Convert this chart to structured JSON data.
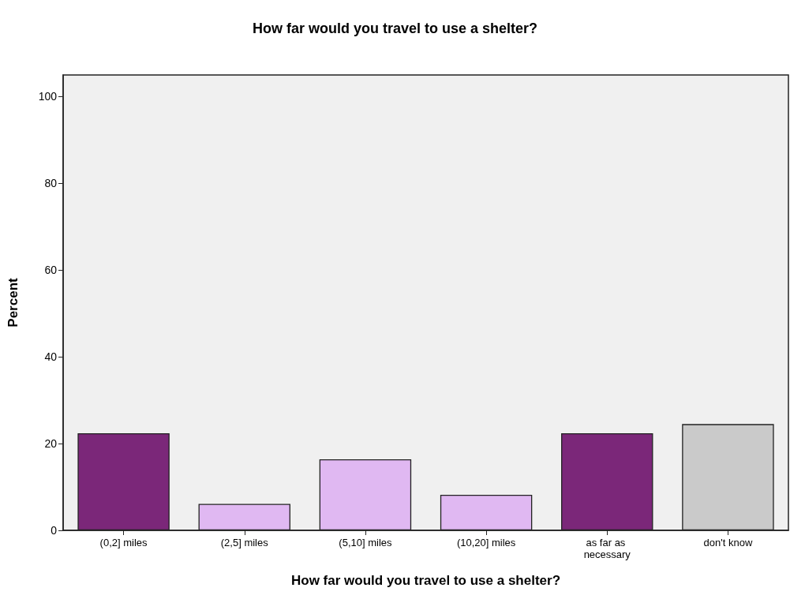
{
  "chart_data": {
    "type": "bar",
    "title": "How far would you travel to use a shelter?",
    "xlabel": "How far would you travel to use a shelter?",
    "ylabel": "Percent",
    "categories": [
      "(0,2] miles",
      "(2,5] miles",
      "(5,10] miles",
      "(10,20] miles",
      "as far as necessary",
      "don't know"
    ],
    "values": [
      22.4,
      6.1,
      16.4,
      8.2,
      22.4,
      24.5
    ],
    "colors": [
      "#7b2779",
      "#e0b8f2",
      "#e0b8f2",
      "#e0b8f2",
      "#7b2779",
      "#cacaca"
    ],
    "ylim": [
      0,
      105
    ],
    "yticks": [
      0,
      20,
      40,
      60,
      80,
      100
    ]
  }
}
